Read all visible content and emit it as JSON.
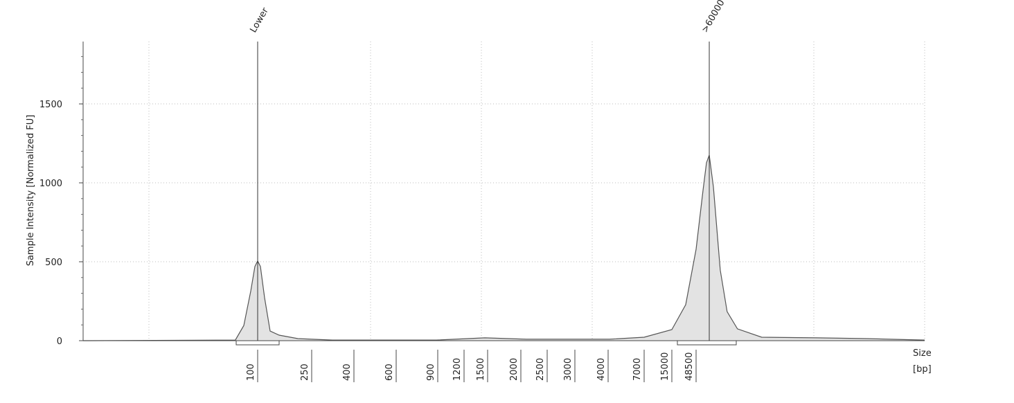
{
  "chart_data": {
    "type": "area",
    "y_label": "Sample Intensity [Normalized FU]",
    "x_label": [
      "Size",
      "[bp]"
    ],
    "x": [
      15,
      78.5,
      86,
      92.8,
      97,
      100,
      104.8,
      112.5,
      123.6,
      144,
      198,
      315,
      889,
      1462,
      2096,
      4087,
      7000,
      15000,
      29300,
      48500,
      54290,
      57450,
      60100,
      64260,
      71900,
      80400,
      95000,
      141000,
      348000,
      769000,
      2000000
    ],
    "values": [
      0,
      4,
      96,
      316,
      470,
      505,
      470,
      272,
      61,
      35,
      13,
      4,
      4,
      18,
      9,
      9,
      22,
      70,
      228,
      579,
      952,
      1127,
      1175,
      974,
      447,
      184,
      75,
      22,
      18,
      13,
      4
    ],
    "color": "#e3e3e3",
    "line_color": "#555555",
    "xlim": [
      15,
      2000000
    ],
    "xticks": [
      100,
      250,
      400,
      600,
      900,
      1200,
      1500,
      2000,
      2500,
      3000,
      4000,
      7000,
      15000,
      48500
    ],
    "ylim": [
      0,
      1895
    ],
    "yticks": [
      0,
      500,
      1000,
      1500
    ],
    "grid": true,
    "annotations": [
      {
        "text": "Lower",
        "x": 100
      },
      {
        "text": ">60000",
        "x": 60100
      }
    ]
  }
}
